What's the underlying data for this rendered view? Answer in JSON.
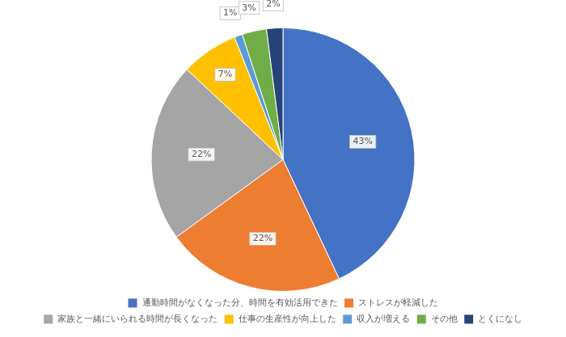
{
  "chart_data": {
    "type": "pie",
    "categories": [
      "通勤時間がなくなった分、時間を有効活用できた",
      "ストレスが軽減した",
      "家族と一緒にいられる時間が長くなった",
      "仕事の生産性が向上した",
      "収入が増える",
      "その他",
      "とくになし"
    ],
    "values": [
      43,
      22,
      22,
      7,
      1,
      3,
      2
    ],
    "value_labels": [
      "43%",
      "22%",
      "22%",
      "7%",
      "1%",
      "3%",
      "2%"
    ],
    "colors": [
      "#4472C4",
      "#ED7D31",
      "#A5A5A5",
      "#FFC000",
      "#5B9BD5",
      "#70AD47",
      "#264478"
    ],
    "data_labels": true,
    "legend": "bottom"
  }
}
